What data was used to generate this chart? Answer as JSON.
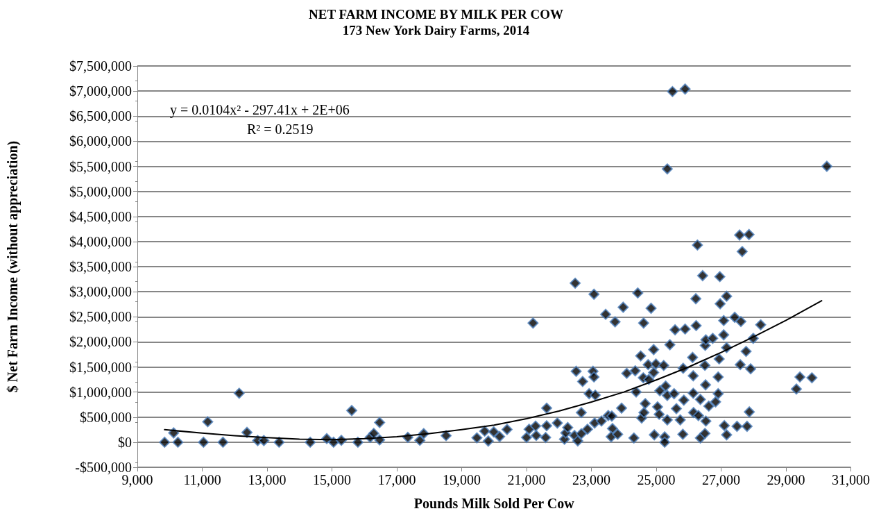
{
  "chart_data": {
    "type": "scatter",
    "title": "NET FARM INCOME BY MILK PER COW",
    "subtitle": "173 New York Dairy Farms, 2014",
    "xlabel": "Pounds Milk Sold Per Cow",
    "ylabel": "$ Net Farm Income (without appreciation)",
    "annotations": [
      "y = 0.0104x² - 297.41x + 2E+06",
      "R² = 0.2519"
    ],
    "xlim": [
      9000,
      31000
    ],
    "xticks": [
      {
        "value": 9000,
        "label": "9,000"
      },
      {
        "value": 11000,
        "label": "11,000"
      },
      {
        "value": 13000,
        "label": "13,000"
      },
      {
        "value": 15000,
        "label": "15,000"
      },
      {
        "value": 17000,
        "label": "17,000"
      },
      {
        "value": 19000,
        "label": "19,000"
      },
      {
        "value": 21000,
        "label": "21,000"
      },
      {
        "value": 23000,
        "label": "23,000"
      },
      {
        "value": 25000,
        "label": "25,000"
      },
      {
        "value": 27000,
        "label": "27,000"
      },
      {
        "value": 29000,
        "label": "29,000"
      },
      {
        "value": 31000,
        "label": "31,000"
      }
    ],
    "ylim": [
      -500000,
      7500000
    ],
    "yticks": [
      {
        "value": -500000,
        "label": "-$500,000"
      },
      {
        "value": 0,
        "label": "$0"
      },
      {
        "value": 500000,
        "label": "$500,000"
      },
      {
        "value": 1000000,
        "label": "$1,000,000"
      },
      {
        "value": 1500000,
        "label": "$1,500,000"
      },
      {
        "value": 2000000,
        "label": "$2,000,000"
      },
      {
        "value": 2500000,
        "label": "$2,500,000"
      },
      {
        "value": 3000000,
        "label": "$3,000,000"
      },
      {
        "value": 3500000,
        "label": "$3,500,000"
      },
      {
        "value": 4000000,
        "label": "$4,000,000"
      },
      {
        "value": 4500000,
        "label": "$4,500,000"
      },
      {
        "value": 5000000,
        "label": "$5,000,000"
      },
      {
        "value": 5500000,
        "label": "$5,500,000"
      },
      {
        "value": 6000000,
        "label": "$6,000,000"
      },
      {
        "value": 6500000,
        "label": "$6,500,000"
      },
      {
        "value": 7000000,
        "label": "$7,000,000"
      },
      {
        "value": 7500000,
        "label": "$7,500,000"
      }
    ],
    "grid": "y",
    "series": [
      {
        "marker": "diamond",
        "color": "#000000",
        "x": [
          9840,
          10120,
          10250,
          11040,
          11170,
          11640,
          12140,
          12380,
          12710,
          12900,
          13370,
          14330,
          14840,
          15050,
          15290,
          15610,
          15800,
          16180,
          16290,
          16470,
          16470,
          17340,
          17710,
          17830,
          18520,
          19470,
          19710,
          19820,
          19990,
          20170,
          20400,
          21000,
          21080,
          21280,
          21300,
          21590,
          21620,
          21620,
          21200,
          21950,
          22170,
          22210,
          22270,
          22500,
          22530,
          22480,
          22580,
          22690,
          22690,
          22730,
          22880,
          22930,
          23080,
          23050,
          23080,
          23120,
          23100,
          23310,
          23440,
          23520,
          23630,
          23650,
          23610,
          23730,
          23810,
          23930,
          23980,
          24090,
          24310,
          24380,
          24350,
          24430,
          24520,
          24550,
          24620,
          24600,
          24660,
          24610,
          24750,
          24770,
          24840,
          24920,
          24920,
          24990,
          24940,
          25040,
          25090,
          25110,
          25230,
          25290,
          25260,
          25260,
          25340,
          25340,
          25420,
          25550,
          25580,
          25620,
          25830,
          25850,
          25820,
          25740,
          25890,
          26120,
          26140,
          26140,
          26220,
          26230,
          26150,
          26300,
          26360,
          26360,
          26430,
          26500,
          26510,
          26530,
          26520,
          26530,
          26500,
          26620,
          26740,
          26910,
          26910,
          26830,
          26940,
          26960,
          26970,
          27080,
          27080,
          27170,
          27170,
          27100,
          27170,
          27420,
          27610,
          27490,
          27590,
          27770,
          27910,
          27800,
          27870,
          27990,
          28220,
          29320,
          29430,
          29800,
          25500,
          25890,
          25340,
          30260,
          26270,
          27570,
          27860,
          27650
        ],
        "values": [
          0,
          185000,
          0,
          0,
          408000,
          0,
          976000,
          195000,
          33000,
          33000,
          0,
          0,
          72000,
          0,
          37000,
          631000,
          0,
          97000,
          176000,
          393000,
          47000,
          97000,
          37000,
          171000,
          131000,
          87000,
          221000,
          22000,
          206000,
          112000,
          254000,
          94000,
          259000,
          322000,
          134000,
          94000,
          328000,
          679000,
          2375000,
          382000,
          60000,
          184000,
          293000,
          3170000,
          1414000,
          134000,
          25000,
          169000,
          591000,
          1210000,
          259000,
          967000,
          2950000,
          1414000,
          1300000,
          938000,
          382000,
          422000,
          2550000,
          531000,
          521000,
          272000,
          109000,
          2400000,
          159000,
          679000,
          2690000,
          1373000,
          84000,
          1001000,
          1423000,
          2975000,
          1720000,
          481000,
          591000,
          1284000,
          769000,
          2375000,
          1546000,
          1252000,
          2670000,
          1846000,
          1389000,
          1560000,
          147000,
          704000,
          556000,
          1025000,
          1530000,
          1120000,
          106000,
          0,
          932000,
          445000,
          1943000,
          967000,
          2240000,
          669000,
          1473000,
          838000,
          159000,
          445000,
          2256000,
          1690000,
          1324000,
          976000,
          2860000,
          2325000,
          591000,
          531000,
          853000,
          84000,
          3320000,
          1532000,
          1930000,
          2040000,
          1144000,
          422000,
          174000,
          719000,
          2070000,
          967000,
          1300000,
          804000,
          1660000,
          3300000,
          2760000,
          2425000,
          2140000,
          2910000,
          1885000,
          332000,
          147000,
          2490000,
          2405000,
          317000,
          1546000,
          1810000,
          1463000,
          317000,
          604000,
          2070000,
          2340000,
          1060000,
          1300000,
          1284000,
          6990000,
          7040000,
          5447000,
          5500000,
          3930000,
          4130000,
          4140000,
          3800000
        ]
      },
      {
        "type": "line",
        "marker": "none",
        "line_style": "solid",
        "color": "#000000",
        "x": [
          9840,
          11000,
          12000,
          13000,
          14000,
          15000,
          16000,
          17000,
          18000,
          19000,
          20000,
          21000,
          22000,
          23000,
          24000,
          25000,
          26000,
          27000,
          28000,
          29000,
          30100
        ],
        "values": [
          250000,
          180000,
          130000,
          90000,
          60000,
          50000,
          70000,
          110000,
          170000,
          250000,
          340000,
          470000,
          620000,
          800000,
          1000000,
          1240000,
          1500000,
          1790000,
          2100000,
          2430000,
          2820000
        ]
      }
    ]
  }
}
